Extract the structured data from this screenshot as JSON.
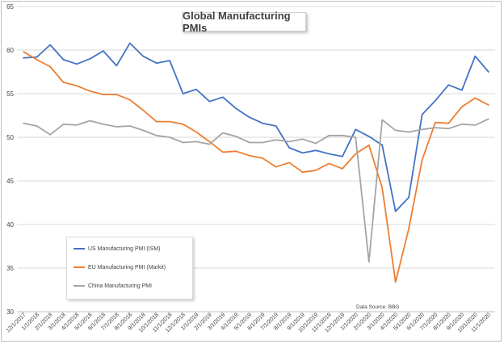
{
  "chart_data": {
    "type": "line",
    "title": "Global Manufacturing PMIs",
    "xlabel": "",
    "ylabel": "",
    "ylim": [
      30,
      65
    ],
    "yticks": [
      30,
      35,
      40,
      45,
      50,
      55,
      60,
      65
    ],
    "grid": true,
    "legend_position": "bottom-left",
    "source": "Data Source: BBG",
    "categories": [
      "12/1/2017",
      "1/1/2018",
      "2/1/2018",
      "3/1/2018",
      "4/1/2018",
      "5/1/2018",
      "6/1/2018",
      "7/1/2018",
      "8/1/2018",
      "9/1/2018",
      "10/1/2018",
      "11/1/2018",
      "12/1/2018",
      "1/1/2019",
      "2/1/2019",
      "3/1/2019",
      "4/1/2019",
      "5/1/2019",
      "6/1/2019",
      "7/1/2019",
      "8/1/2019",
      "9/1/2019",
      "10/1/2019",
      "11/1/2019",
      "12/1/2019",
      "1/1/2020",
      "2/1/2020",
      "3/1/2020",
      "4/1/2020",
      "5/1/2020",
      "6/1/2020",
      "7/1/2020",
      "8/1/2020",
      "9/1/2020",
      "10/1/2020",
      "11/1/2020"
    ],
    "series": [
      {
        "name": "US Manufacturing PMI (ISM)",
        "color": "#4472c4",
        "values": [
          59.1,
          59.2,
          60.6,
          58.9,
          58.4,
          59.0,
          59.9,
          58.2,
          60.8,
          59.3,
          58.5,
          58.8,
          55.0,
          55.5,
          54.1,
          54.6,
          53.3,
          52.3,
          51.6,
          51.3,
          48.8,
          48.2,
          48.5,
          48.1,
          47.8,
          50.9,
          50.1,
          49.1,
          41.5,
          43.1,
          52.6,
          54.2,
          56.0,
          55.4,
          59.3,
          57.5
        ]
      },
      {
        "name": "EU Manufacturing PMI (Markit)",
        "color": "#ed7d31",
        "values": [
          59.8,
          58.9,
          58.1,
          56.3,
          55.9,
          55.3,
          54.9,
          54.9,
          54.3,
          53.1,
          51.8,
          51.8,
          51.5,
          50.6,
          49.5,
          48.3,
          48.4,
          47.9,
          47.6,
          46.6,
          47.1,
          46.0,
          46.2,
          47.0,
          46.4,
          48.1,
          49.1,
          44.2,
          33.4,
          39.5,
          47.4,
          51.7,
          51.6,
          53.5,
          54.5,
          53.7
        ]
      },
      {
        "name": "China Manufacturing PMI",
        "color": "#a5a5a5",
        "values": [
          51.6,
          51.3,
          50.3,
          51.5,
          51.4,
          51.9,
          51.5,
          51.2,
          51.3,
          50.8,
          50.2,
          50.0,
          49.4,
          49.5,
          49.2,
          50.5,
          50.1,
          49.4,
          49.4,
          49.7,
          49.5,
          49.8,
          49.3,
          50.2,
          50.2,
          50.0,
          35.7,
          52.0,
          50.8,
          50.6,
          50.9,
          51.1,
          51.0,
          51.5,
          51.4,
          52.1
        ]
      }
    ]
  }
}
